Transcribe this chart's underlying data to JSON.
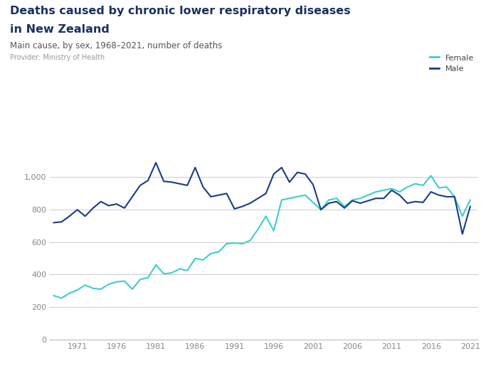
{
  "title_line1": "Deaths caused by chronic lower respiratory diseases",
  "title_line2": "in New Zealand",
  "subtitle": "Main cause, by sex, 1968–2021, number of deaths",
  "provider": "Provider: Ministry of Health",
  "female_color": "#3ECFC9",
  "male_color": "#1B3A8C",
  "background_color": "#FFFFFF",
  "grid_color": "#CCCCCC",
  "logo_color": "#5566CC",
  "title_color": "#1B3060",
  "subtitle_color": "#555555",
  "provider_color": "#999999",
  "tick_color": "#888888",
  "years": [
    1968,
    1969,
    1970,
    1971,
    1972,
    1973,
    1974,
    1975,
    1976,
    1977,
    1978,
    1979,
    1980,
    1981,
    1982,
    1983,
    1984,
    1985,
    1986,
    1987,
    1988,
    1989,
    1990,
    1991,
    1992,
    1993,
    1994,
    1995,
    1996,
    1997,
    1998,
    1999,
    2000,
    2001,
    2002,
    2003,
    2004,
    2005,
    2006,
    2007,
    2008,
    2009,
    2010,
    2011,
    2012,
    2013,
    2014,
    2015,
    2016,
    2017,
    2018,
    2019,
    2020,
    2021
  ],
  "female": [
    270,
    255,
    285,
    305,
    335,
    315,
    310,
    340,
    355,
    360,
    310,
    370,
    380,
    460,
    405,
    410,
    435,
    425,
    500,
    490,
    530,
    540,
    590,
    595,
    590,
    610,
    680,
    760,
    670,
    860,
    870,
    880,
    890,
    845,
    800,
    860,
    870,
    820,
    860,
    870,
    890,
    910,
    920,
    930,
    910,
    940,
    960,
    950,
    1010,
    935,
    940,
    880,
    760,
    860
  ],
  "male": [
    720,
    725,
    760,
    800,
    760,
    810,
    850,
    825,
    835,
    810,
    880,
    950,
    980,
    1090,
    975,
    970,
    960,
    950,
    1060,
    940,
    880,
    890,
    900,
    805,
    820,
    840,
    870,
    900,
    1020,
    1060,
    970,
    1030,
    1020,
    955,
    800,
    840,
    850,
    810,
    855,
    840,
    855,
    870,
    870,
    920,
    890,
    840,
    850,
    845,
    910,
    890,
    880,
    880,
    650,
    820
  ]
}
